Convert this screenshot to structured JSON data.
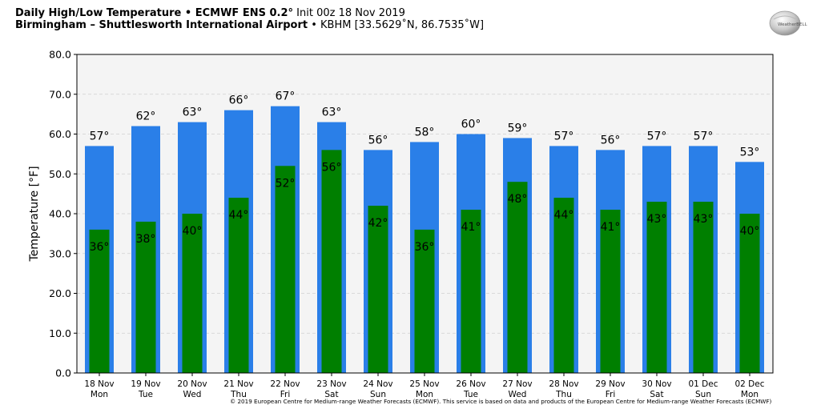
{
  "header": {
    "line1_bold": "Daily High/Low Temperature • ECMWF ENS 0.2",
    "line1_degree": "°",
    "line1_rest": " Init 00z 18 Nov 2019",
    "line2_bold": "Birmingham – Shuttlesworth International Airport",
    "line2_rest": " • KBHM [33.5629˚N, 86.7535˚W]"
  },
  "logo": {
    "text": "WeatherBELL",
    "icon": "weatherbell-logo"
  },
  "copyright": "© 2019 European Centre for Medium-range Weather Forecasts (ECMWF). This service is based on data and products of the European Centre for Medium-range Weather Forecasts (ECMWF)",
  "colors": {
    "high_bar": "#2a7fe8",
    "low_bar": "#007f00",
    "plot_bg": "#f4f4f4"
  },
  "chart_data": {
    "type": "bar",
    "ylabel": "Temperature [°F]",
    "ylim": [
      0,
      80
    ],
    "yticks": [
      "0.0",
      "10.0",
      "20.0",
      "30.0",
      "40.0",
      "50.0",
      "60.0",
      "70.0",
      "80.0"
    ],
    "grid": true,
    "categories": [
      {
        "date": "18 Nov",
        "day": "Mon"
      },
      {
        "date": "19 Nov",
        "day": "Tue"
      },
      {
        "date": "20 Nov",
        "day": "Wed"
      },
      {
        "date": "21 Nov",
        "day": "Thu"
      },
      {
        "date": "22 Nov",
        "day": "Fri"
      },
      {
        "date": "23 Nov",
        "day": "Sat"
      },
      {
        "date": "24 Nov",
        "day": "Sun"
      },
      {
        "date": "25 Nov",
        "day": "Mon"
      },
      {
        "date": "26 Nov",
        "day": "Tue"
      },
      {
        "date": "27 Nov",
        "day": "Wed"
      },
      {
        "date": "28 Nov",
        "day": "Thu"
      },
      {
        "date": "29 Nov",
        "day": "Fri"
      },
      {
        "date": "30 Nov",
        "day": "Sat"
      },
      {
        "date": "01 Dec",
        "day": "Sun"
      },
      {
        "date": "02 Dec",
        "day": "Mon"
      }
    ],
    "series": [
      {
        "key": "high",
        "values": [
          57,
          62,
          63,
          66,
          67,
          63,
          56,
          58,
          60,
          59,
          57,
          56,
          57,
          57,
          53
        ],
        "labels": [
          "57°",
          "62°",
          "63°",
          "66°",
          "67°",
          "63°",
          "56°",
          "58°",
          "60°",
          "59°",
          "57°",
          "56°",
          "57°",
          "57°",
          "53°"
        ]
      },
      {
        "key": "low",
        "values": [
          36,
          38,
          40,
          44,
          52,
          56,
          42,
          36,
          41,
          48,
          44,
          41,
          43,
          43,
          40
        ],
        "labels": [
          "36°",
          "38°",
          "40°",
          "44°",
          "52°",
          "56°",
          "42°",
          "36°",
          "41°",
          "48°",
          "44°",
          "41°",
          "43°",
          "43°",
          "40°"
        ]
      }
    ]
  }
}
